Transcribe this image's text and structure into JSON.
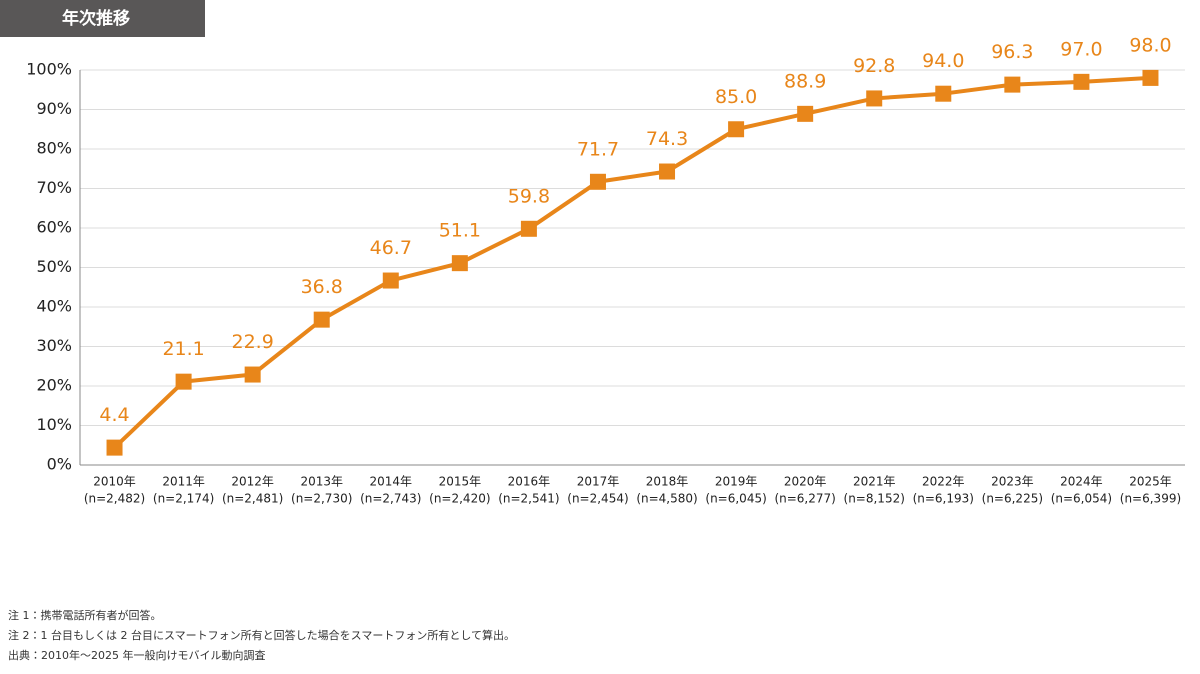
{
  "chart_data": {
    "type": "line",
    "tag": "年次推移",
    "categories": [
      "2010年",
      "2011年",
      "2012年",
      "2013年",
      "2014年",
      "2015年",
      "2016年",
      "2017年",
      "2018年",
      "2019年",
      "2020年",
      "2021年",
      "2022年",
      "2023年",
      "2024年",
      "2025年"
    ],
    "sample_sizes": [
      "(n=2,482)",
      "(n=2,174)",
      "(n=2,481)",
      "(n=2,730)",
      "(n=2,743)",
      "(n=2,420)",
      "(n=2,541)",
      "(n=2,454)",
      "(n=4,580)",
      "(n=6,045)",
      "(n=6,277)",
      "(n=8,152)",
      "(n=6,193)",
      "(n=6,225)",
      "(n=6,054)",
      "(n=6,399)"
    ],
    "values": [
      4.4,
      21.1,
      22.9,
      36.8,
      46.7,
      51.1,
      59.8,
      71.7,
      74.3,
      85.0,
      88.9,
      92.8,
      94.0,
      96.3,
      97.0,
      98.0
    ],
    "value_labels": [
      "4.4",
      "21.1",
      "22.9",
      "36.8",
      "46.7",
      "51.1",
      "59.8",
      "71.7",
      "74.3",
      "85.0",
      "88.9",
      "92.8",
      "94.0",
      "96.3",
      "97.0",
      "98.0"
    ],
    "color": "#e8861a",
    "ylim": [
      0,
      100
    ],
    "yticks": [
      {
        "value": 0,
        "label": "0%"
      },
      {
        "value": 10,
        "label": "10%"
      },
      {
        "value": 20,
        "label": "20%"
      },
      {
        "value": 30,
        "label": "30%"
      },
      {
        "value": 40,
        "label": "40%"
      },
      {
        "value": 50,
        "label": "50%"
      },
      {
        "value": 60,
        "label": "60%"
      },
      {
        "value": 70,
        "label": "70%"
      },
      {
        "value": 80,
        "label": "80%"
      },
      {
        "value": 90,
        "label": "90%"
      },
      {
        "value": 100,
        "label": "100%"
      }
    ],
    "grid": true,
    "notes": [
      "注 1：携帯電話所有者が回答。",
      "注 2：1 台目もしくは 2 台目にスマートフォン所有と回答した場合をスマートフォン所有として算出。",
      "出典：2010年〜2025 年一般向けモバイル動向調査"
    ]
  }
}
